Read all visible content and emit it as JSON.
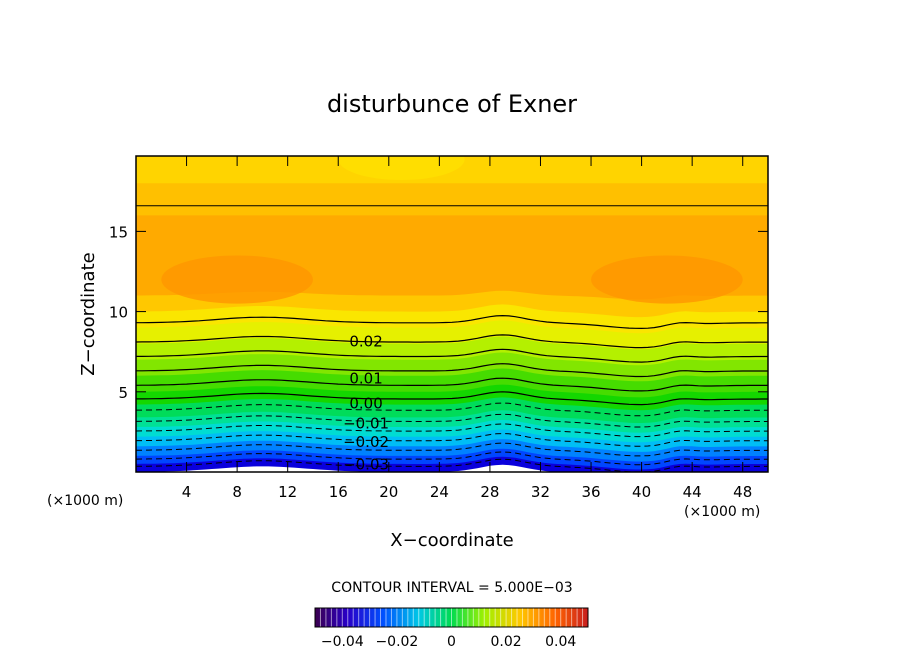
{
  "chart_data": {
    "type": "contour",
    "title": "disturbunce of Exner",
    "xlabel": "X−coordinate",
    "ylabel": "Z−coordinate",
    "x_unit_left": "(×1000 m)",
    "x_unit_right": "(×1000 m)",
    "xlim": [
      0,
      50
    ],
    "ylim": [
      0,
      19.7
    ],
    "x_ticks": [
      "4",
      "8",
      "12",
      "16",
      "20",
      "24",
      "28",
      "32",
      "36",
      "40",
      "44",
      "48"
    ],
    "y_ticks": [
      "5",
      "10",
      "15"
    ],
    "contour_labels": [
      "0.02",
      "0.01",
      "0.00",
      "−0.01",
      "−0.02",
      "−0.03"
    ],
    "contour_interval_text": "CONTOUR INTERVAL = 5.000E−03",
    "colorbar": {
      "range": [
        -0.05,
        0.05
      ],
      "tick_labels": [
        "−0.04",
        "−0.02",
        "0",
        "0.02",
        "0.04"
      ]
    },
    "bands": [
      {
        "z": 0.0,
        "color": "#0a00dc"
      },
      {
        "z": 0.5,
        "color": "#0046ff"
      },
      {
        "z": 1.0,
        "color": "#0082ff"
      },
      {
        "z": 1.6,
        "color": "#00bef5"
      },
      {
        "z": 2.2,
        "color": "#00dcd2"
      },
      {
        "z": 2.8,
        "color": "#00e196"
      },
      {
        "z": 3.4,
        "color": "#00dc5a"
      },
      {
        "z": 4.2,
        "color": "#14d700"
      },
      {
        "z": 5.0,
        "color": "#46dc00"
      },
      {
        "z": 6.0,
        "color": "#82e600"
      },
      {
        "z": 7.0,
        "color": "#b4f000"
      },
      {
        "z": 8.0,
        "color": "#e6f000"
      },
      {
        "z": 9.0,
        "color": "#fae600"
      },
      {
        "z": 10.0,
        "color": "#ffc800"
      },
      {
        "z": 11.0,
        "color": "#ffaa00"
      },
      {
        "z": 16.0,
        "color": "#ffc000"
      },
      {
        "z": 18.0,
        "color": "#ffd400"
      }
    ],
    "contour_lines": [
      {
        "z": 0.35,
        "dashed": true
      },
      {
        "z": 0.8,
        "dashed": true
      },
      {
        "z": 1.35,
        "dashed": true
      },
      {
        "z": 1.95,
        "dashed": true
      },
      {
        "z": 2.55,
        "dashed": true
      },
      {
        "z": 3.15,
        "dashed": true
      },
      {
        "z": 3.85,
        "dashed": true
      },
      {
        "z": 4.55,
        "dashed": false
      },
      {
        "z": 5.4,
        "dashed": false
      },
      {
        "z": 6.3,
        "dashed": false
      },
      {
        "z": 7.2,
        "dashed": false
      },
      {
        "z": 8.1,
        "dashed": false
      },
      {
        "z": 9.3,
        "dashed": false
      }
    ],
    "grid": false
  }
}
